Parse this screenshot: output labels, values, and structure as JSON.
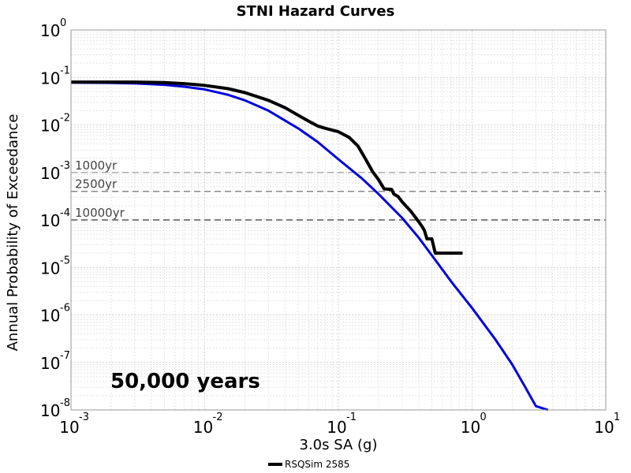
{
  "chart_data": {
    "type": "line",
    "title": "STNI Hazard Curves",
    "xlabel": "3.0s SA (g)",
    "ylabel": "Annual Probability of Exceedance",
    "xscale": "log",
    "yscale": "log",
    "xlim": [
      0.001,
      10
    ],
    "ylim": [
      1e-08,
      1
    ],
    "x_ticks": [
      {
        "value": 0.001,
        "base": "10",
        "exp": "-3"
      },
      {
        "value": 0.01,
        "base": "10",
        "exp": "-2"
      },
      {
        "value": 0.1,
        "base": "10",
        "exp": "-1"
      },
      {
        "value": 1,
        "base": "10",
        "exp": "0"
      },
      {
        "value": 10,
        "base": "10",
        "exp": "1"
      }
    ],
    "y_ticks": [
      {
        "value": 1,
        "base": "10",
        "exp": "0"
      },
      {
        "value": 0.1,
        "base": "10",
        "exp": "-1"
      },
      {
        "value": 0.01,
        "base": "10",
        "exp": "-2"
      },
      {
        "value": 0.001,
        "base": "10",
        "exp": "-3"
      },
      {
        "value": 0.0001,
        "base": "10",
        "exp": "-4"
      },
      {
        "value": 1e-05,
        "base": "10",
        "exp": "-5"
      },
      {
        "value": 1e-06,
        "base": "10",
        "exp": "-6"
      },
      {
        "value": 1e-07,
        "base": "10",
        "exp": "-7"
      },
      {
        "value": 1e-08,
        "base": "10",
        "exp": "-8"
      }
    ],
    "grid": true,
    "legend_position": "bottom-center",
    "reference_lines": [
      {
        "label": "1000yr",
        "y": 0.001
      },
      {
        "label": "2500yr",
        "y": 0.0004
      },
      {
        "label": "10000yr",
        "y": 0.0001
      }
    ],
    "annotation": "50,000 years",
    "series": [
      {
        "name": "RSQSim 2585",
        "color": "#000000",
        "x": [
          0.001,
          0.002,
          0.003,
          0.005,
          0.007,
          0.01,
          0.015,
          0.02,
          0.03,
          0.04,
          0.05,
          0.06,
          0.07,
          0.08,
          0.1,
          0.12,
          0.14,
          0.16,
          0.18,
          0.2,
          0.22,
          0.25,
          0.26,
          0.28,
          0.3,
          0.35,
          0.38,
          0.42,
          0.44,
          0.46,
          0.5,
          0.53,
          0.56,
          0.6,
          0.65,
          0.7,
          0.8,
          0.85
        ],
        "values": [
          0.08,
          0.08,
          0.08,
          0.078,
          0.074,
          0.068,
          0.058,
          0.048,
          0.033,
          0.023,
          0.016,
          0.012,
          0.0095,
          0.0085,
          0.0072,
          0.0055,
          0.0036,
          0.0019,
          0.00105,
          0.0007,
          0.00045,
          0.00044,
          0.00035,
          0.00031,
          0.00024,
          0.00015,
          0.00011,
          7.5e-05,
          6e-05,
          4e-05,
          4e-05,
          2e-05,
          2e-05,
          2e-05,
          2e-05,
          2e-05,
          2e-05,
          2e-05
        ]
      },
      {
        "color": "#0000dd",
        "x": [
          0.001,
          0.002,
          0.003,
          0.005,
          0.007,
          0.01,
          0.015,
          0.02,
          0.03,
          0.05,
          0.07,
          0.1,
          0.15,
          0.2,
          0.3,
          0.4,
          0.5,
          0.7,
          1.0,
          1.5,
          2.0,
          2.5,
          3.0,
          3.7
        ],
        "values": [
          0.078,
          0.077,
          0.075,
          0.07,
          0.064,
          0.056,
          0.043,
          0.033,
          0.02,
          0.0085,
          0.0044,
          0.0019,
          0.00075,
          0.00035,
          0.00011,
          4.2e-05,
          1.8e-05,
          5e-06,
          1.4e-06,
          3e-07,
          9e-08,
          3e-08,
          1.2e-08,
          1e-08
        ]
      }
    ]
  }
}
